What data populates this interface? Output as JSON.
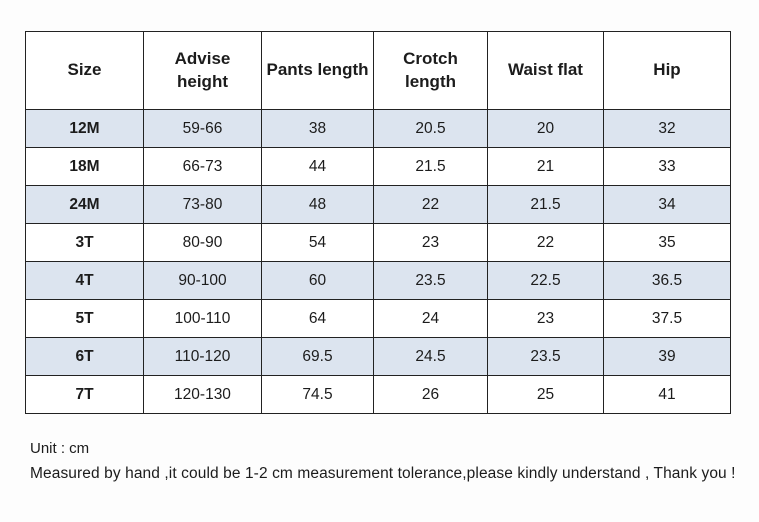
{
  "table": {
    "columns": [
      "Size",
      "Advise height",
      "Pants length",
      "Crotch length",
      "Waist flat",
      "Hip"
    ],
    "rows": [
      [
        "12M",
        "59-66",
        "38",
        "20.5",
        "20",
        "32"
      ],
      [
        "18M",
        "66-73",
        "44",
        "21.5",
        "21",
        "33"
      ],
      [
        "24M",
        "73-80",
        "48",
        "22",
        "21.5",
        "34"
      ],
      [
        "3T",
        "80-90",
        "54",
        "23",
        "22",
        "35"
      ],
      [
        "4T",
        "90-100",
        "60",
        "23.5",
        "22.5",
        "36.5"
      ],
      [
        "5T",
        "100-110",
        "64",
        "24",
        "23",
        "37.5"
      ],
      [
        "6T",
        "110-120",
        "69.5",
        "24.5",
        "23.5",
        "39"
      ],
      [
        "7T",
        "120-130",
        "74.5",
        "26",
        "25",
        "41"
      ]
    ],
    "shaded_row_color": "#dce4ef",
    "border_color": "#222222"
  },
  "footer": {
    "unit": "Unit : cm",
    "note": "Measured by hand ,it could be 1-2 cm measurement tolerance,please kindly understand , Thank you !"
  }
}
